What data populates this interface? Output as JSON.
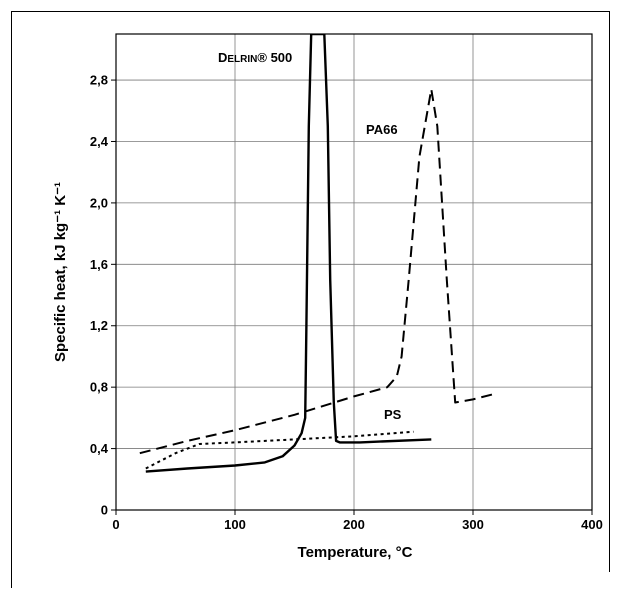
{
  "chart_data": {
    "type": "line",
    "title": "",
    "xlabel": "Temperature, °C",
    "ylabel": "Specific heat, kJ kg⁻¹ K⁻¹",
    "xlim": [
      0,
      400
    ],
    "ylim": [
      0,
      3.1
    ],
    "x_ticks": [
      "0",
      "100",
      "200",
      "300",
      "400"
    ],
    "y_ticks": [
      "0",
      "0,4",
      "0,8",
      "1,2",
      "1,6",
      "2,0",
      "2,4",
      "2,8"
    ],
    "x_tick_values": [
      0,
      100,
      200,
      300,
      400
    ],
    "y_tick_values": [
      0,
      0.4,
      0.8,
      1.2,
      1.6,
      2.0,
      2.4,
      2.8
    ],
    "grid": true,
    "legend": "none",
    "series": [
      {
        "name": "Delrin® 500",
        "label_prefix": "D",
        "label_small_caps": "ELRIN",
        "label_suffix": "® 500",
        "style": "solid",
        "color": "#000000",
        "x": [
          25,
          60,
          100,
          125,
          140,
          150,
          156,
          159,
          160,
          162,
          164,
          175,
          178,
          180,
          183,
          185,
          188,
          205,
          265
        ],
        "y": [
          0.25,
          0.27,
          0.29,
          0.31,
          0.35,
          0.42,
          0.5,
          0.6,
          1.2,
          2.5,
          3.1,
          3.1,
          2.5,
          1.5,
          0.7,
          0.45,
          0.44,
          0.44,
          0.46
        ]
      },
      {
        "name": "PA66",
        "style": "dashed",
        "color": "#000000",
        "x": [
          20,
          60,
          100,
          150,
          200,
          228,
          236,
          240,
          246,
          255,
          265,
          270,
          278,
          285,
          300,
          320
        ],
        "y": [
          0.37,
          0.45,
          0.52,
          0.62,
          0.74,
          0.8,
          0.87,
          1.0,
          1.5,
          2.3,
          2.74,
          2.5,
          1.5,
          0.7,
          0.72,
          0.76
        ]
      },
      {
        "name": "PS",
        "style": "dotted",
        "color": "#000000",
        "x": [
          25,
          50,
          70,
          100,
          150,
          200,
          250
        ],
        "y": [
          0.27,
          0.37,
          0.43,
          0.44,
          0.46,
          0.48,
          0.51
        ]
      }
    ],
    "annotations": [
      {
        "text": "PA66",
        "series": "PA66"
      },
      {
        "text": "PS",
        "series": "PS"
      }
    ]
  }
}
